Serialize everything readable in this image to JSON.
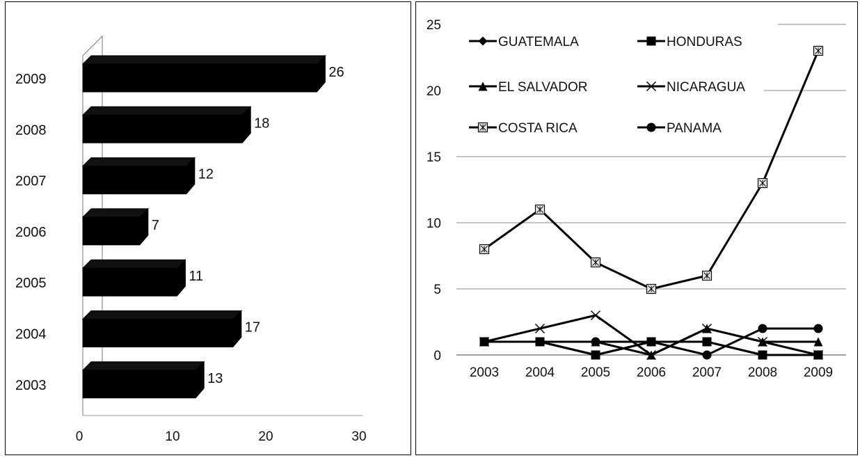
{
  "chart_data": [
    {
      "type": "bar",
      "orientation": "horizontal",
      "style": "3d",
      "categories": [
        "2003",
        "2004",
        "2005",
        "2006",
        "2007",
        "2008",
        "2009"
      ],
      "values": [
        13,
        17,
        11,
        7,
        12,
        18,
        26
      ],
      "data_labels": [
        "13",
        "17",
        "11",
        "7",
        "12",
        "18",
        "26"
      ],
      "xlim": [
        0,
        30
      ],
      "x_ticks": [
        "0",
        "10",
        "20",
        "30"
      ],
      "grid": false,
      "bar_color": "#000000"
    },
    {
      "type": "line",
      "x": [
        "2003",
        "2004",
        "2005",
        "2006",
        "2007",
        "2008",
        "2009"
      ],
      "ylim": [
        0,
        25
      ],
      "y_ticks": [
        "0",
        "5",
        "10",
        "15",
        "20",
        "25"
      ],
      "grid": true,
      "legend_position": "top-left",
      "series": [
        {
          "name": "GUATEMALA",
          "marker": "diamond",
          "values": [
            1,
            1,
            0,
            1,
            1,
            0,
            0
          ]
        },
        {
          "name": "HONDURAS",
          "marker": "square",
          "values": [
            1,
            1,
            0,
            1,
            1,
            0,
            0
          ]
        },
        {
          "name": "EL SALVADOR",
          "marker": "triangle",
          "values": [
            1,
            1,
            1,
            0,
            2,
            1,
            1
          ]
        },
        {
          "name": "NICARAGUA",
          "marker": "x",
          "values": [
            1,
            2,
            3,
            0,
            2,
            1,
            0
          ]
        },
        {
          "name": "COSTA RICA",
          "marker": "boxed-star",
          "values": [
            8,
            11,
            7,
            5,
            6,
            13,
            23
          ]
        },
        {
          "name": "PANAMA",
          "marker": "circle",
          "values": [
            1,
            1,
            1,
            1,
            0,
            2,
            2
          ]
        }
      ],
      "line_color": "#000000"
    }
  ]
}
